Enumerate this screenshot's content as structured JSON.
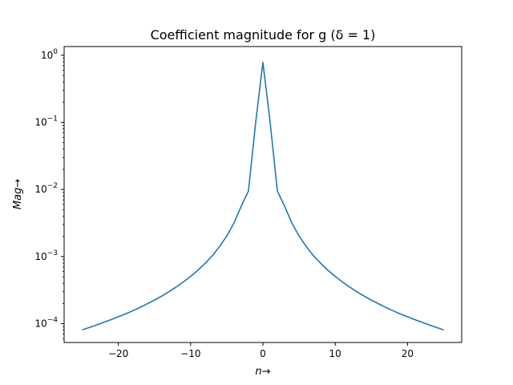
{
  "chart_data": {
    "type": "line",
    "title": "Coefficient magnitude for g (δ = 1)",
    "xlabel": "n→",
    "ylabel": "Mag→",
    "yscale": "log",
    "xlim": [
      -27.5,
      27.5
    ],
    "ylim": [
      5.25e-05,
      1.35
    ],
    "x_ticks": [
      -20,
      -10,
      0,
      10,
      20
    ],
    "x_tick_labels": [
      "−20",
      "−10",
      "0",
      "10",
      "20"
    ],
    "y_ticks": [
      0.0001,
      0.001,
      0.01,
      0.1,
      1
    ],
    "y_tick_labels": [
      {
        "base": "10",
        "exp": "−4"
      },
      {
        "base": "10",
        "exp": "−3"
      },
      {
        "base": "10",
        "exp": "−2"
      },
      {
        "base": "10",
        "exp": "−1"
      },
      {
        "base": "10",
        "exp": "0"
      }
    ],
    "grid": false,
    "series": [
      {
        "color": "#1f77b4",
        "x": [
          -25,
          -24,
          -23,
          -22,
          -21,
          -20,
          -19,
          -18,
          -17,
          -16,
          -15,
          -14,
          -13,
          -12,
          -11,
          -10,
          -9,
          -8,
          -7,
          -6,
          -5,
          -4,
          -3,
          -2,
          -1,
          0,
          1,
          2,
          3,
          4,
          5,
          6,
          7,
          8,
          9,
          10,
          11,
          12,
          13,
          14,
          15,
          16,
          17,
          18,
          19,
          20,
          21,
          22,
          23,
          24,
          25
        ],
        "y": [
          8.11e-05,
          8.8e-05,
          9.58e-05,
          0.000105,
          0.000115,
          0.000127,
          0.00014,
          0.000156,
          0.000175,
          0.000198,
          0.000225,
          0.000258,
          0.0003,
          0.000352,
          0.000419,
          0.000506,
          0.000625,
          0.000792,
          0.00103,
          0.00141,
          0.00203,
          0.00317,
          0.00563,
          0.0095,
          0.1,
          0.785,
          0.1,
          0.0095,
          0.00563,
          0.00317,
          0.00203,
          0.00141,
          0.00103,
          0.000792,
          0.000625,
          0.000506,
          0.000419,
          0.000352,
          0.0003,
          0.000258,
          0.000225,
          0.000198,
          0.000175,
          0.000156,
          0.00014,
          0.000127,
          0.000115,
          0.000105,
          9.58e-05,
          8.8e-05,
          8.11e-05
        ]
      }
    ]
  }
}
